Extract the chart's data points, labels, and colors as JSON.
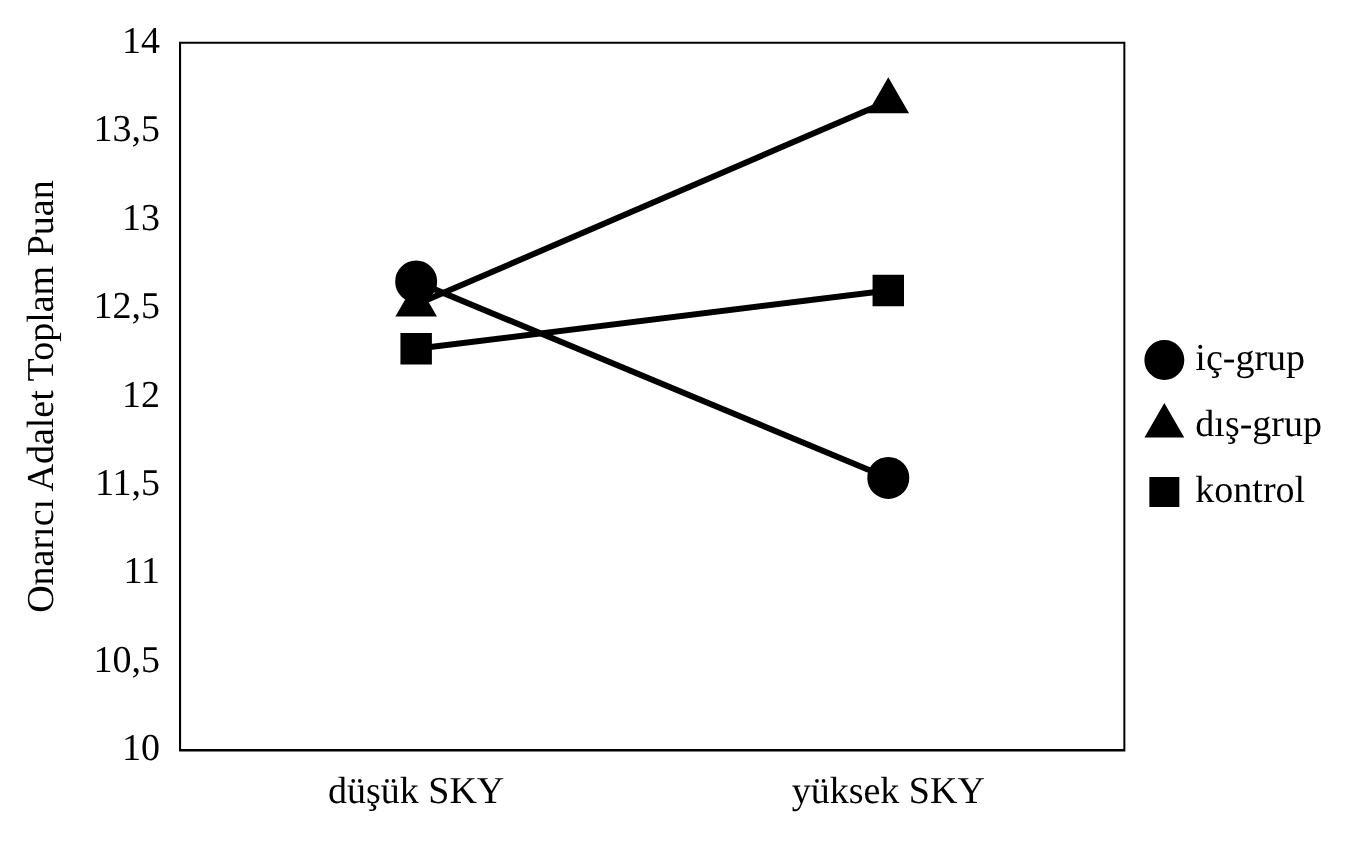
{
  "chart_data": {
    "type": "line",
    "ylabel": "Onarıcı Adalet Toplam Puan",
    "categories": [
      "düşük SKY",
      "yüksek SKY"
    ],
    "series": [
      {
        "name": "iç-grup",
        "color": "#000000",
        "marker": "circle",
        "values": [
          12.65,
          11.54
        ]
      },
      {
        "name": "dış-grup",
        "color": "#000000",
        "marker": "triangle",
        "values": [
          12.52,
          13.67
        ]
      },
      {
        "name": "kontrol",
        "color": "#000000",
        "marker": "square",
        "values": [
          12.27,
          12.6
        ]
      }
    ],
    "ylim": [
      10,
      14
    ],
    "yticks": [
      10,
      {
        "value": 10.5,
        "label": "10,5"
      },
      11,
      {
        "value": 11.5,
        "label": "11,5"
      },
      12,
      {
        "value": 12.5,
        "label": "12,5"
      },
      13,
      {
        "value": 13.5,
        "label": "13,5"
      },
      14
    ],
    "grid": false,
    "legend": "right",
    "line_style": "solid"
  }
}
